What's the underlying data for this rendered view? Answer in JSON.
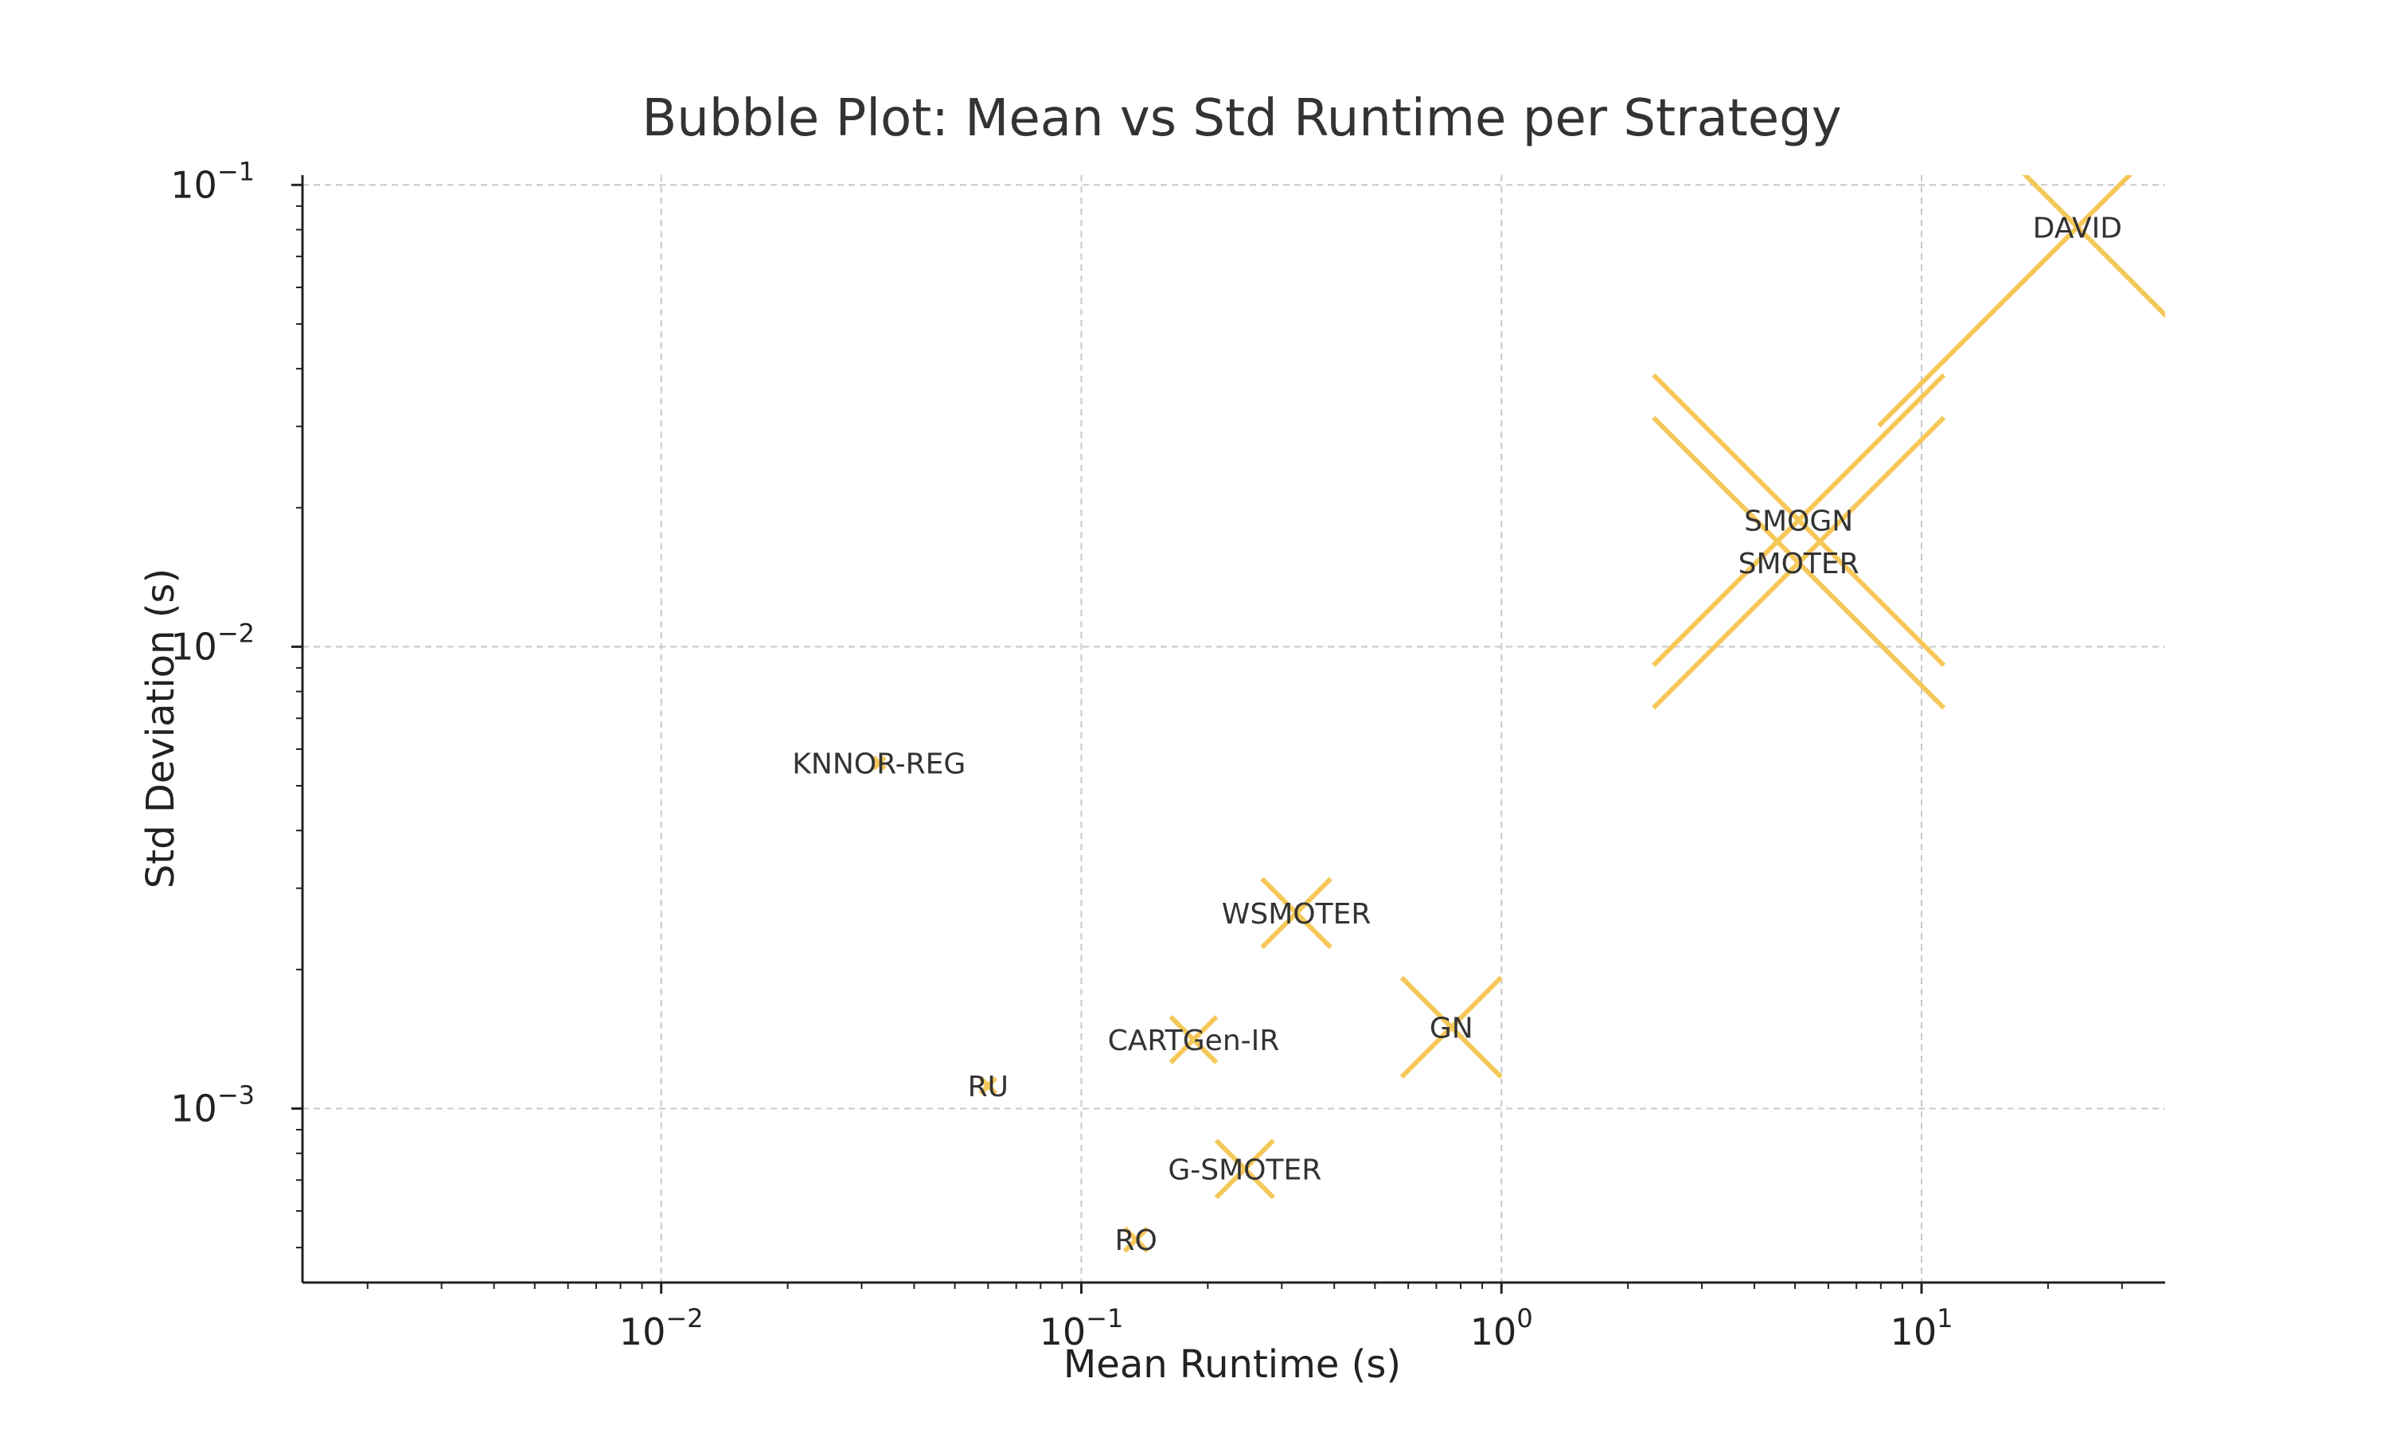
{
  "chart_data": {
    "type": "scatter",
    "title": "Bubble Plot: Mean vs Std Runtime per Strategy",
    "xlabel": "Mean Runtime (s)",
    "ylabel": "Std Deviation (s)",
    "xscale": "log",
    "yscale": "log",
    "xlim": [
      0.0014,
      38
    ],
    "ylim": [
      0.00042,
      0.105
    ],
    "x_ticks": [
      "10^-2",
      "10^-1",
      "10^0",
      "10^1"
    ],
    "y_ticks": [
      "10^-3",
      "10^-2",
      "10^-1"
    ],
    "grid": true,
    "marker": "x",
    "marker_color": "#f5c85a",
    "points": [
      {
        "label": "KNNOR-REG",
        "x": 0.033,
        "y": 0.0056,
        "size": 0.15
      },
      {
        "label": "RU",
        "x": 0.06,
        "y": 0.00112,
        "size": 0.2
      },
      {
        "label": "RO",
        "x": 0.135,
        "y": 0.00052,
        "size": 0.3
      },
      {
        "label": "CARTGen-IR",
        "x": 0.185,
        "y": 0.00141,
        "size": 0.6
      },
      {
        "label": "G-SMOTER",
        "x": 0.245,
        "y": 0.00074,
        "size": 0.75
      },
      {
        "label": "WSMOTER",
        "x": 0.325,
        "y": 0.00265,
        "size": 0.9
      },
      {
        "label": "GN",
        "x": 0.76,
        "y": 0.0015,
        "size": 1.3
      },
      {
        "label": "SMOGN",
        "x": 5.1,
        "y": 0.0188,
        "size": 3.8
      },
      {
        "label": "SMOTER",
        "x": 5.1,
        "y": 0.0152,
        "size": 3.8
      },
      {
        "label": "DAVID",
        "x": 23.5,
        "y": 0.081,
        "size": 5.2
      }
    ]
  }
}
